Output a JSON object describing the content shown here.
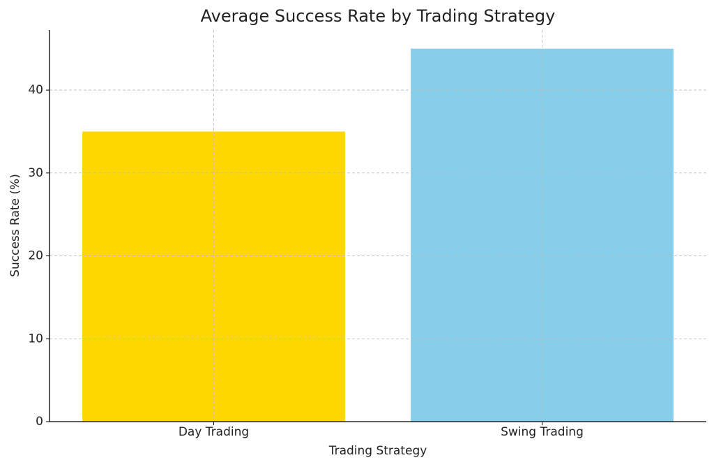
{
  "chart_data": {
    "type": "bar",
    "title": "Average Success Rate by Trading Strategy",
    "x_label": "Trading Strategy",
    "y_label": "Success Rate (%)",
    "categories": [
      "Day Trading",
      "Swing Trading"
    ],
    "values": [
      35,
      45
    ],
    "colors": [
      "#ffd700",
      "#87ceeb"
    ],
    "ylim": [
      0,
      47.25
    ],
    "yticks": [
      0,
      10,
      20,
      30,
      40
    ],
    "grid": true
  }
}
